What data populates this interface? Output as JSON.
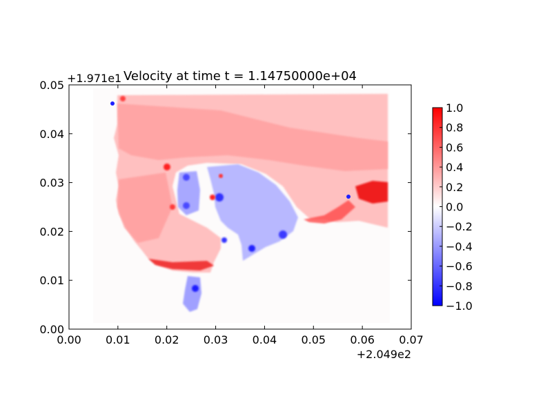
{
  "chart_data": {
    "type": "heatmap",
    "title": "Velocity at time t = 1.14750000e+04",
    "x_offset_label": "+2.049e2",
    "y_offset_label": "+1.971e1",
    "xlim": [
      0.0,
      0.07
    ],
    "ylim": [
      0.0,
      0.05
    ],
    "x_ticks": [
      "0.00",
      "0.01",
      "0.02",
      "0.03",
      "0.04",
      "0.05",
      "0.06",
      "0.07"
    ],
    "y_ticks": [
      "0.00",
      "0.01",
      "0.02",
      "0.03",
      "0.04",
      "0.05"
    ],
    "colormap": "bwr",
    "colorbar": {
      "range": [
        -1.0,
        1.0
      ],
      "ticks": [
        "1.0",
        "0.8",
        "0.6",
        "0.4",
        "0.2",
        "0.0",
        "−0.2",
        "−0.4",
        "−0.6",
        "−0.8",
        "−1.0"
      ],
      "low_color": "#0000ff",
      "mid_color": "#ffffff",
      "high_color": "#ff0000"
    },
    "grid": false
  }
}
